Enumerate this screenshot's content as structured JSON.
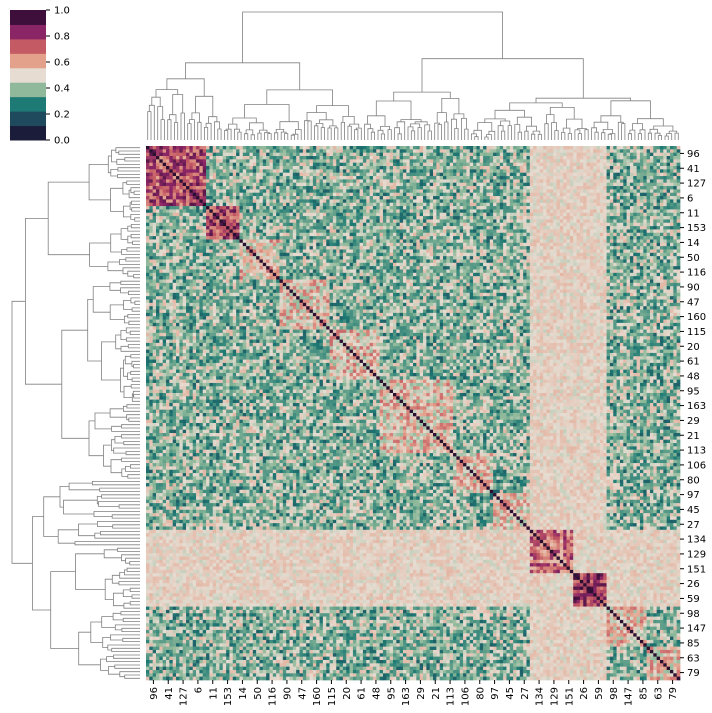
{
  "chart_data": {
    "type": "heatmap",
    "title": "",
    "xlabel": "",
    "ylabel": "",
    "value_range": [
      0.0,
      1.0
    ],
    "colorbar": {
      "ticks": [
        "0.0",
        "0.2",
        "0.4",
        "0.6",
        "0.8",
        "1.0"
      ],
      "palette": [
        "#1b1b3a",
        "#1f4a5e",
        "#1e7a74",
        "#8fb99a",
        "#e6dcd1",
        "#e3a08a",
        "#c45a63",
        "#8a2566",
        "#3d0f3a"
      ]
    },
    "diagonal_color": "#2a1030",
    "row_labels": [
      "96",
      "41",
      "127",
      "6",
      "11",
      "153",
      "14",
      "50",
      "116",
      "90",
      "47",
      "160",
      "115",
      "20",
      "61",
      "48",
      "95",
      "163",
      "29",
      "21",
      "113",
      "106",
      "80",
      "97",
      "45",
      "27",
      "134",
      "129",
      "151",
      "26",
      "59",
      "98",
      "147",
      "85",
      "63",
      "79"
    ],
    "col_labels": [
      "96",
      "41",
      "127",
      "6",
      "11",
      "153",
      "14",
      "50",
      "116",
      "90",
      "47",
      "160",
      "115",
      "20",
      "61",
      "48",
      "95",
      "163",
      "29",
      "21",
      "113",
      "106",
      "80",
      "97",
      "45",
      "27",
      "134",
      "129",
      "151",
      "26",
      "59",
      "98",
      "147",
      "85",
      "63",
      "79"
    ],
    "clusters_note_count": 9,
    "dendrograms": {
      "top": true,
      "left": true,
      "line_color": "#808080"
    }
  }
}
